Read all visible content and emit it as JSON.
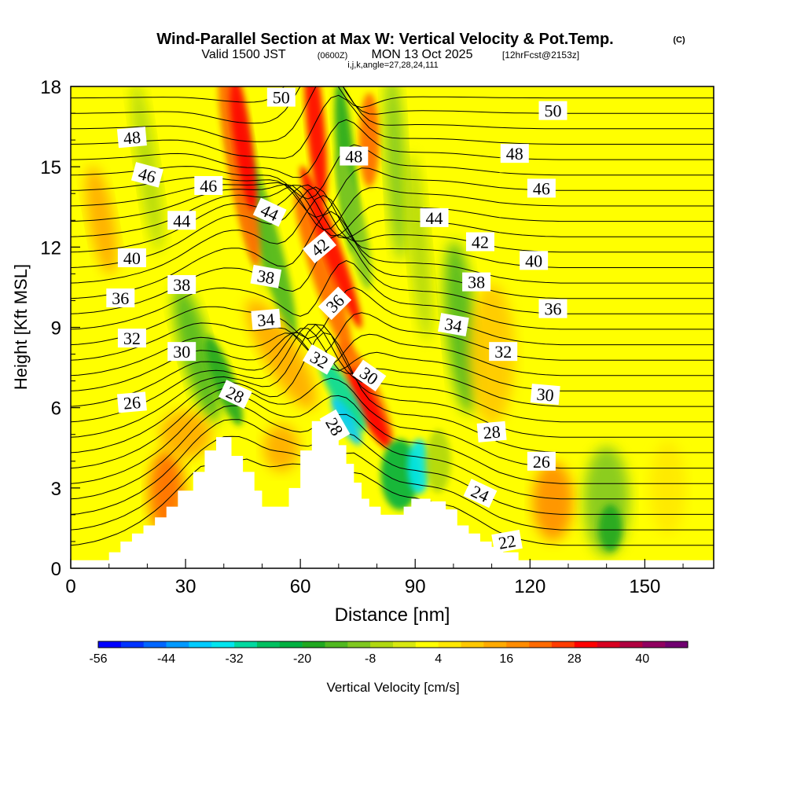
{
  "chart_data": {
    "type": "heatmap",
    "title": "Wind-Parallel Section at Max W: Vertical Velocity & Pot.Temp.",
    "title_mark": "(C)",
    "subtitle_prefix": "Valid 1500 JST",
    "subtitle_utc": "(0600Z)",
    "subtitle_date": "MON 13 Oct 2025",
    "subtitle_fcst": "[12hrFcst@2153z]",
    "subtitle2": "i,j,k,angle=27,28,24,111",
    "xlabel": "Distance [nm]",
    "ylabel": "Height [Kft MSL]",
    "xlim": [
      0,
      168
    ],
    "ylim": [
      0,
      18
    ],
    "xticks": [
      0,
      30,
      60,
      90,
      120,
      150
    ],
    "yticks": [
      0,
      3,
      6,
      9,
      12,
      15,
      18
    ],
    "colorbar": {
      "label": "Vertical Velocity [cm/s]",
      "tick_labels": [
        "-56",
        "-44",
        "-32",
        "-20",
        "-8",
        "4",
        "16",
        "28",
        "40"
      ],
      "colors": [
        "#0000ff",
        "#0033ff",
        "#0066ff",
        "#0099ff",
        "#00ccff",
        "#00e5ee",
        "#00d9a0",
        "#00c060",
        "#00b040",
        "#20a820",
        "#50b820",
        "#80c820",
        "#b0d810",
        "#d8e810",
        "#ffff00",
        "#ffe800",
        "#ffc800",
        "#ffaa00",
        "#ff8c00",
        "#ff6a00",
        "#ff3c00",
        "#ff0000",
        "#d80020",
        "#b00040",
        "#900060",
        "#700070"
      ]
    },
    "background_color": "#ffff00",
    "terrain_color": "#ffffff",
    "updraft_color": "#ff0000",
    "downdraft_color": "#00e5ee",
    "contour_color": "#000000",
    "terrain_profile": [
      [
        0,
        0.3
      ],
      [
        10,
        0.3
      ],
      [
        10,
        0.6
      ],
      [
        13,
        0.6
      ],
      [
        13,
        1.0
      ],
      [
        16,
        1.0
      ],
      [
        16,
        1.3
      ],
      [
        19,
        1.3
      ],
      [
        19,
        1.6
      ],
      [
        22,
        1.6
      ],
      [
        22,
        1.9
      ],
      [
        25,
        1.9
      ],
      [
        25,
        2.3
      ],
      [
        28,
        2.3
      ],
      [
        28,
        2.9
      ],
      [
        32,
        2.9
      ],
      [
        32,
        3.6
      ],
      [
        35,
        3.6
      ],
      [
        35,
        4.4
      ],
      [
        38,
        4.4
      ],
      [
        38,
        4.9
      ],
      [
        42,
        4.9
      ],
      [
        42,
        4.2
      ],
      [
        45,
        4.2
      ],
      [
        45,
        3.6
      ],
      [
        48,
        3.6
      ],
      [
        48,
        2.9
      ],
      [
        50,
        2.9
      ],
      [
        50,
        2.3
      ],
      [
        54,
        2.3
      ],
      [
        54,
        2.3
      ],
      [
        57,
        2.3
      ],
      [
        57,
        3.0
      ],
      [
        60,
        3.0
      ],
      [
        60,
        4.4
      ],
      [
        63,
        4.4
      ],
      [
        63,
        5.5
      ],
      [
        67,
        5.5
      ],
      [
        67,
        5.2
      ],
      [
        70,
        5.2
      ],
      [
        70,
        4.6
      ],
      [
        72,
        4.6
      ],
      [
        72,
        3.9
      ],
      [
        74,
        3.9
      ],
      [
        74,
        3.2
      ],
      [
        76,
        3.2
      ],
      [
        76,
        2.6
      ],
      [
        78,
        2.6
      ],
      [
        78,
        2.3
      ],
      [
        81,
        2.3
      ],
      [
        81,
        2.0
      ],
      [
        87,
        2.0
      ],
      [
        87,
        2.3
      ],
      [
        89,
        2.3
      ],
      [
        89,
        2.6
      ],
      [
        94,
        2.6
      ],
      [
        94,
        2.5
      ],
      [
        98,
        2.5
      ],
      [
        98,
        2.2
      ],
      [
        101,
        2.2
      ],
      [
        101,
        1.6
      ],
      [
        104,
        1.6
      ],
      [
        104,
        1.3
      ],
      [
        107,
        1.3
      ],
      [
        107,
        1.0
      ],
      [
        110,
        1.0
      ],
      [
        110,
        0.8
      ],
      [
        113,
        0.8
      ],
      [
        113,
        0.6
      ],
      [
        117,
        0.6
      ],
      [
        117,
        0.3
      ],
      [
        168,
        0.3
      ]
    ],
    "contour_levels": [
      22,
      24,
      26,
      28,
      30,
      32,
      34,
      36,
      38,
      40,
      42,
      44,
      46,
      48,
      50
    ],
    "contour_labels": [
      {
        "text": "50",
        "x": 55,
        "y": 17.6,
        "angle": 0
      },
      {
        "text": "50",
        "x": 126,
        "y": 17.1,
        "angle": 0
      },
      {
        "text": "48",
        "x": 16,
        "y": 16.1,
        "angle": -5
      },
      {
        "text": "48",
        "x": 74,
        "y": 15.4,
        "angle": 0
      },
      {
        "text": "48",
        "x": 116,
        "y": 15.5,
        "angle": 0
      },
      {
        "text": "46",
        "x": 20,
        "y": 14.7,
        "angle": 15
      },
      {
        "text": "46",
        "x": 36,
        "y": 14.3,
        "angle": 0
      },
      {
        "text": "46",
        "x": 123,
        "y": 14.2,
        "angle": 0
      },
      {
        "text": "44",
        "x": 29,
        "y": 13.0,
        "angle": 0
      },
      {
        "text": "44",
        "x": 52,
        "y": 13.3,
        "angle": 25
      },
      {
        "text": "44",
        "x": 95,
        "y": 13.1,
        "angle": 0
      },
      {
        "text": "42",
        "x": 65,
        "y": 12.0,
        "angle": -40
      },
      {
        "text": "42",
        "x": 107,
        "y": 12.2,
        "angle": 0
      },
      {
        "text": "40",
        "x": 16,
        "y": 11.6,
        "angle": 0
      },
      {
        "text": "40",
        "x": 121,
        "y": 11.5,
        "angle": 0
      },
      {
        "text": "38",
        "x": 29,
        "y": 10.6,
        "angle": 0
      },
      {
        "text": "38",
        "x": 51,
        "y": 10.9,
        "angle": 10
      },
      {
        "text": "38",
        "x": 106,
        "y": 10.7,
        "angle": 0
      },
      {
        "text": "36",
        "x": 13,
        "y": 10.1,
        "angle": 0
      },
      {
        "text": "36",
        "x": 69,
        "y": 9.9,
        "angle": -45
      },
      {
        "text": "36",
        "x": 126,
        "y": 9.7,
        "angle": 0
      },
      {
        "text": "34",
        "x": 51,
        "y": 9.3,
        "angle": -5
      },
      {
        "text": "34",
        "x": 100,
        "y": 9.1,
        "angle": 10
      },
      {
        "text": "32",
        "x": 16,
        "y": 8.6,
        "angle": 0
      },
      {
        "text": "32",
        "x": 65,
        "y": 7.8,
        "angle": 30
      },
      {
        "text": "32",
        "x": 113,
        "y": 8.1,
        "angle": 0
      },
      {
        "text": "30",
        "x": 29,
        "y": 8.1,
        "angle": 0
      },
      {
        "text": "30",
        "x": 78,
        "y": 7.2,
        "angle": 35
      },
      {
        "text": "30",
        "x": 124,
        "y": 6.5,
        "angle": 5
      },
      {
        "text": "28",
        "x": 43,
        "y": 6.5,
        "angle": 25
      },
      {
        "text": "28",
        "x": 69,
        "y": 5.3,
        "angle": 60
      },
      {
        "text": "28",
        "x": 110,
        "y": 5.1,
        "angle": -5
      },
      {
        "text": "26",
        "x": 16,
        "y": 6.2,
        "angle": -5
      },
      {
        "text": "26",
        "x": 123,
        "y": 4.0,
        "angle": 0
      },
      {
        "text": "24",
        "x": 107,
        "y": 2.8,
        "angle": 25
      },
      {
        "text": "22",
        "x": 114,
        "y": 1.0,
        "angle": -10
      }
    ]
  }
}
